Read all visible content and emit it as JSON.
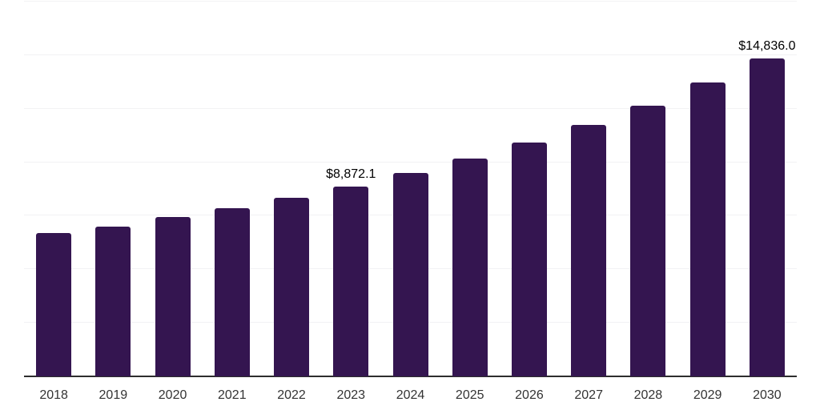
{
  "chart_data": {
    "type": "bar",
    "title": "",
    "xlabel": "",
    "ylabel": "",
    "categories": [
      "2018",
      "2019",
      "2020",
      "2021",
      "2022",
      "2023",
      "2024",
      "2025",
      "2026",
      "2027",
      "2028",
      "2029",
      "2030"
    ],
    "values": [
      6690,
      7000,
      7450,
      7850,
      8350,
      8872.1,
      9510,
      10160,
      10910,
      11730,
      12650,
      13720,
      14836.0
    ],
    "value_labels": {
      "2023": "$8,872.1",
      "2030": "$14,836.0"
    },
    "ylim": [
      0,
      17500
    ],
    "gridline_step": 2500,
    "grid": true,
    "legend": "none",
    "colors": {
      "background": "#ffffff",
      "bar": "#341550",
      "axis": "#2e2e2e",
      "gridline": "#f2f2f4",
      "tick_label": "#333333",
      "value_label": "#000000"
    }
  }
}
